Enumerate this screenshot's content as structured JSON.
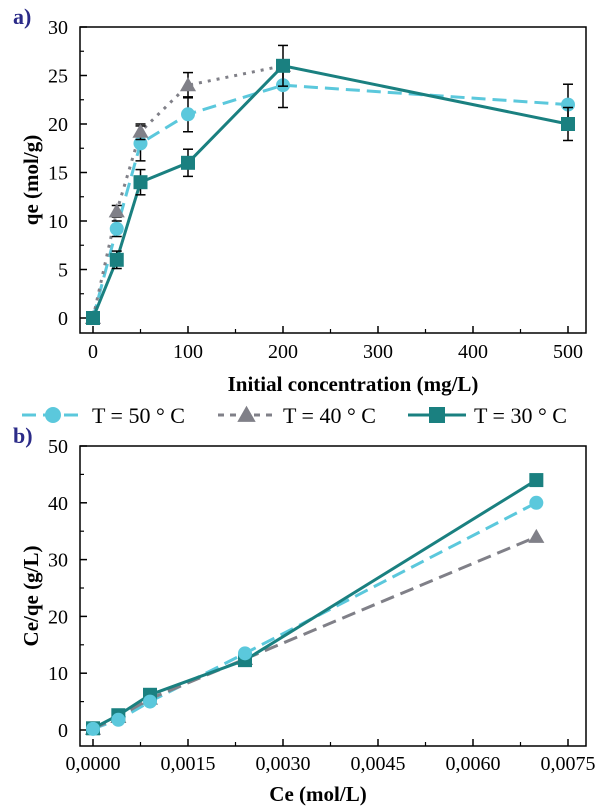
{
  "chart_data": [
    {
      "panel_label": "a)",
      "type": "line",
      "xlabel": "Initial concentration (mg/L)",
      "ylabel": "qe (mol/g)",
      "x_categories": [
        "0",
        "100",
        "200",
        "300",
        "400",
        "500"
      ],
      "ylim": [
        0,
        30
      ],
      "yticks": [
        "0",
        "5",
        "10",
        "15",
        "20",
        "25",
        "30"
      ],
      "grid": false,
      "series": [
        {
          "name": "T = 50 ° C",
          "color": "#5bc8dc",
          "marker": "circle",
          "line_style": "dashed",
          "x": [
            0,
            25,
            50,
            100,
            200,
            500
          ],
          "y": [
            0,
            9.2,
            18,
            21,
            24,
            22
          ],
          "error": [
            0,
            0.8,
            1.8,
            1.8,
            2.3,
            2.1
          ]
        },
        {
          "name": "T = 40 ° C",
          "color": "#808088",
          "marker": "triangle",
          "line_style": "dotted",
          "x": [
            0,
            25,
            50,
            100,
            200
          ],
          "y": [
            0,
            11,
            19.2,
            24,
            26
          ],
          "error": [
            0,
            0.6,
            0.8,
            1.3,
            0
          ]
        },
        {
          "name": "T = 30 ° C",
          "color": "#1a8080",
          "marker": "square",
          "line_style": "solid",
          "x": [
            0,
            25,
            50,
            100,
            200,
            500
          ],
          "y": [
            0,
            6,
            14,
            16,
            26,
            20
          ],
          "error": [
            0,
            0.9,
            1.3,
            1.4,
            2.1,
            1.7
          ]
        }
      ]
    },
    {
      "panel_label": "b)",
      "type": "line",
      "xlabel": "Ce (mol/L)",
      "ylabel": "Ce/qe (g/L)",
      "xlim": [
        0,
        0.0075
      ],
      "xticks": [
        "0,0000",
        "0,0015",
        "0,0030",
        "0,0045",
        "0,0060",
        "0,0075"
      ],
      "ylim": [
        0,
        50
      ],
      "yticks": [
        "0",
        "10",
        "20",
        "30",
        "40",
        "50"
      ],
      "grid": false,
      "series": [
        {
          "name": "T = 50 ° C",
          "color": "#5bc8dc",
          "marker": "circle",
          "line_style": "dashed",
          "x": [
            0.0,
            0.0004,
            0.0009,
            0.0024,
            0.007
          ],
          "y": [
            0.2,
            1.8,
            5.0,
            13.5,
            40.0
          ]
        },
        {
          "name": "T = 40 ° C",
          "color": "#808088",
          "marker": "triangle",
          "line_style": "dashed",
          "x": [
            0.0,
            0.0004,
            0.0009,
            0.0024,
            0.007
          ],
          "y": [
            0.2,
            2.3,
            5.5,
            12.5,
            34.0
          ]
        },
        {
          "name": "T = 30 ° C",
          "color": "#1a8080",
          "marker": "square",
          "line_style": "solid",
          "x": [
            0.0,
            0.0004,
            0.0009,
            0.0024,
            0.007
          ],
          "y": [
            0.3,
            2.6,
            6.2,
            12.3,
            44.0
          ]
        }
      ]
    }
  ]
}
